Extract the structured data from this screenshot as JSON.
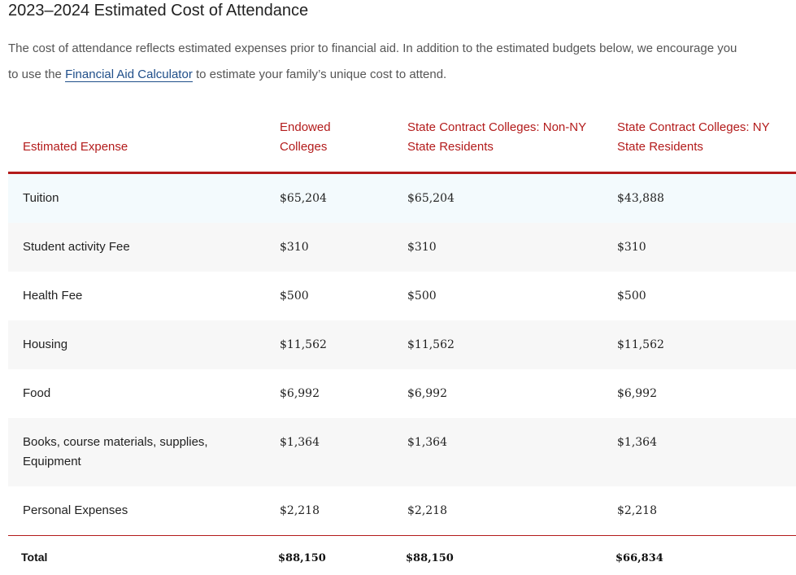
{
  "title": "2023–2024 Estimated Cost of Attendance",
  "intro": {
    "before_link": "The cost of attendance reflects estimated expenses prior to financial aid. In addition to the estimated budgets below, we encourage you to use the ",
    "link_text": "Financial Aid Calculator",
    "after_link": " to estimate your family’s unique cost to attend."
  },
  "table": {
    "headers": [
      "Estimated Expense",
      "Endowed Colleges",
      "State Contract Colleges: Non-NY State Residents",
      "State Contract Colleges: NY State Residents"
    ],
    "rows": [
      {
        "label": "Tuition",
        "values": [
          "$65,204",
          "$65,204",
          "$43,888"
        ]
      },
      {
        "label": "Student activity Fee",
        "values": [
          "$310",
          "$310",
          "$310"
        ]
      },
      {
        "label": "Health Fee",
        "values": [
          "$500",
          "$500",
          "$500"
        ]
      },
      {
        "label": "Housing",
        "values": [
          "$11,562",
          "$11,562",
          "$11,562"
        ]
      },
      {
        "label": "Food",
        "values": [
          "$6,992",
          "$6,992",
          "$6,992"
        ]
      },
      {
        "label": "Books, course materials, supplies, Equipment",
        "values": [
          "$1,364",
          "$1,364",
          "$1,364"
        ]
      },
      {
        "label": "Personal Expenses",
        "values": [
          "$2,218",
          "$2,218",
          "$2,218"
        ]
      }
    ],
    "total": {
      "label": "Total",
      "values": [
        "$88,150",
        "$88,150",
        "$66,834"
      ]
    }
  },
  "colors": {
    "accent_red": "#b31b1b",
    "link_blue": "#1f4e89",
    "row_stripe": "#f7f7f7",
    "row_highlight": "#f3fafd"
  }
}
